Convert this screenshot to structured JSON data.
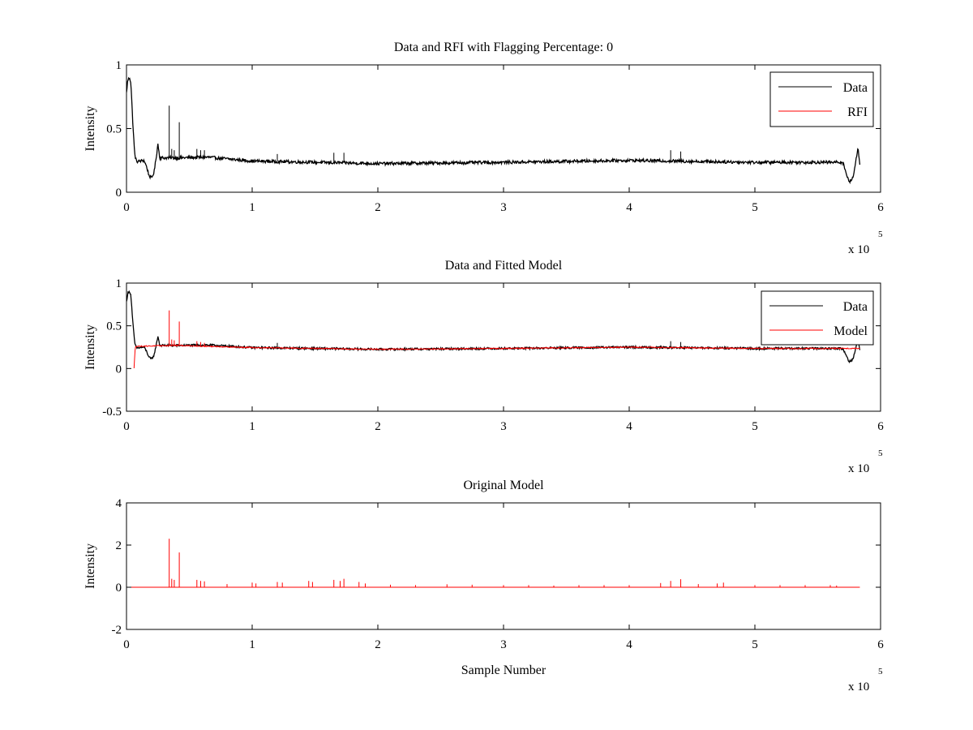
{
  "figure": {
    "background": "#ffffff"
  },
  "chart_data": [
    {
      "type": "line",
      "title": "Data and RFI with Flagging Percentage: 0",
      "xlabel": "",
      "ylabel": "Intensity",
      "xlim": [
        0,
        600000
      ],
      "ylim": [
        0,
        1
      ],
      "xticks": [
        0,
        100000,
        200000,
        300000,
        400000,
        500000,
        600000
      ],
      "xtick_labels": [
        "0",
        "1",
        "2",
        "3",
        "4",
        "5",
        "6"
      ],
      "yticks": [
        0,
        0.5,
        1
      ],
      "ytick_labels": [
        "0",
        "0.5",
        "1"
      ],
      "x_exponent": {
        "base": "x 10",
        "power": "5"
      },
      "grid": false,
      "legend_position": "top-right",
      "series": [
        {
          "name": "Data",
          "color": "#000000",
          "baseline": 0.245,
          "noise": 0.012,
          "points": [
            [
              0,
              0.78
            ],
            [
              1000,
              0.88
            ],
            [
              2500,
              0.9
            ],
            [
              3500,
              0.86
            ],
            [
              5000,
              0.55
            ],
            [
              6500,
              0.3
            ],
            [
              8000,
              0.24
            ],
            [
              14000,
              0.25
            ],
            [
              16000,
              0.2
            ],
            [
              18000,
              0.13
            ],
            [
              20000,
              0.11
            ],
            [
              22000,
              0.16
            ],
            [
              24000,
              0.3
            ],
            [
              25000,
              0.38
            ],
            [
              26500,
              0.27
            ],
            [
              40000,
              0.27
            ],
            [
              65000,
              0.275
            ],
            [
              100000,
              0.245
            ],
            [
              200000,
              0.225
            ],
            [
              300000,
              0.235
            ],
            [
              400000,
              0.25
            ],
            [
              500000,
              0.235
            ],
            [
              570000,
              0.235
            ],
            [
              572000,
              0.17
            ],
            [
              575000,
              0.08
            ],
            [
              578000,
              0.11
            ],
            [
              580000,
              0.22
            ],
            [
              582000,
              0.36
            ],
            [
              583500,
              0.21
            ]
          ],
          "spikes": [
            [
              34000,
              0.68
            ],
            [
              42000,
              0.55
            ],
            [
              36000,
              0.34
            ],
            [
              38000,
              0.33
            ],
            [
              56000,
              0.34
            ],
            [
              59000,
              0.33
            ],
            [
              62000,
              0.33
            ],
            [
              120000,
              0.3
            ],
            [
              165000,
              0.31
            ],
            [
              173000,
              0.31
            ],
            [
              433000,
              0.33
            ],
            [
              441000,
              0.32
            ]
          ]
        },
        {
          "name": "RFI",
          "color": "#ff0000",
          "points": []
        }
      ]
    },
    {
      "type": "line",
      "title": "Data and Fitted Model",
      "xlabel": "",
      "ylabel": "Intensity",
      "xlim": [
        0,
        600000
      ],
      "ylim": [
        -0.5,
        1
      ],
      "xticks": [
        0,
        100000,
        200000,
        300000,
        400000,
        500000,
        600000
      ],
      "xtick_labels": [
        "0",
        "1",
        "2",
        "3",
        "4",
        "5",
        "6"
      ],
      "yticks": [
        -0.5,
        0,
        0.5,
        1
      ],
      "ytick_labels": [
        "-0.5",
        "0",
        "0.5",
        "1"
      ],
      "x_exponent": {
        "base": "x 10",
        "power": "5"
      },
      "grid": false,
      "legend_position": "top-right",
      "series": [
        {
          "name": "Data",
          "color": "#000000",
          "baseline": 0.245,
          "noise": 0.012,
          "points": [
            [
              0,
              0.78
            ],
            [
              1000,
              0.88
            ],
            [
              2500,
              0.9
            ],
            [
              3500,
              0.86
            ],
            [
              5000,
              0.55
            ],
            [
              6500,
              0.3
            ],
            [
              8000,
              0.24
            ],
            [
              14000,
              0.25
            ],
            [
              16000,
              0.2
            ],
            [
              18000,
              0.13
            ],
            [
              20000,
              0.11
            ],
            [
              22000,
              0.16
            ],
            [
              24000,
              0.3
            ],
            [
              25000,
              0.38
            ],
            [
              26500,
              0.27
            ],
            [
              40000,
              0.27
            ],
            [
              65000,
              0.275
            ],
            [
              100000,
              0.245
            ],
            [
              200000,
              0.225
            ],
            [
              300000,
              0.235
            ],
            [
              400000,
              0.25
            ],
            [
              500000,
              0.235
            ],
            [
              570000,
              0.235
            ],
            [
              572000,
              0.17
            ],
            [
              575000,
              0.08
            ],
            [
              578000,
              0.11
            ],
            [
              580000,
              0.22
            ],
            [
              582000,
              0.36
            ],
            [
              583500,
              0.21
            ]
          ],
          "spikes": [
            [
              34000,
              0.3
            ],
            [
              120000,
              0.3
            ],
            [
              433000,
              0.32
            ],
            [
              441000,
              0.31
            ]
          ]
        },
        {
          "name": "Model",
          "color": "#ff0000",
          "baseline": 0.245,
          "noise": 0.006,
          "points": [
            [
              6000,
              0.0
            ],
            [
              7000,
              0.26
            ],
            [
              40000,
              0.27
            ],
            [
              100000,
              0.245
            ],
            [
              200000,
              0.225
            ],
            [
              300000,
              0.235
            ],
            [
              400000,
              0.25
            ],
            [
              500000,
              0.235
            ],
            [
              583500,
              0.235
            ]
          ],
          "spikes": [
            [
              34000,
              0.68
            ],
            [
              42000,
              0.55
            ],
            [
              36000,
              0.34
            ],
            [
              38000,
              0.33
            ],
            [
              56000,
              0.32
            ],
            [
              59000,
              0.31
            ],
            [
              62000,
              0.3
            ]
          ]
        }
      ]
    },
    {
      "type": "line",
      "title": "Original Model",
      "xlabel": "Sample Number",
      "ylabel": "Intensity",
      "xlim": [
        0,
        600000
      ],
      "ylim": [
        -2,
        4
      ],
      "xticks": [
        0,
        100000,
        200000,
        300000,
        400000,
        500000,
        600000
      ],
      "xtick_labels": [
        "0",
        "1",
        "2",
        "3",
        "4",
        "5",
        "6"
      ],
      "yticks": [
        -2,
        0,
        2,
        4
      ],
      "ytick_labels": [
        "-2",
        "0",
        "2",
        "4"
      ],
      "x_exponent": {
        "base": "x 10",
        "power": "5"
      },
      "grid": false,
      "legend_position": "none",
      "series": [
        {
          "name": "",
          "color": "#ff0000",
          "baseline": 0.0,
          "noise": 0.0,
          "points": [
            [
              0,
              0.0
            ],
            [
              583500,
              0.0
            ]
          ],
          "spikes": [
            [
              34000,
              2.3
            ],
            [
              42000,
              1.65
            ],
            [
              36000,
              0.4
            ],
            [
              38000,
              0.35
            ],
            [
              56000,
              0.35
            ],
            [
              59000,
              0.3
            ],
            [
              62000,
              0.28
            ],
            [
              80000,
              0.15
            ],
            [
              100000,
              0.22
            ],
            [
              103000,
              0.18
            ],
            [
              120000,
              0.25
            ],
            [
              124000,
              0.22
            ],
            [
              145000,
              0.3
            ],
            [
              148000,
              0.25
            ],
            [
              165000,
              0.35
            ],
            [
              170000,
              0.3
            ],
            [
              173000,
              0.4
            ],
            [
              185000,
              0.25
            ],
            [
              190000,
              0.18
            ],
            [
              210000,
              0.12
            ],
            [
              230000,
              0.1
            ],
            [
              255000,
              0.14
            ],
            [
              275000,
              0.12
            ],
            [
              300000,
              0.1
            ],
            [
              320000,
              0.1
            ],
            [
              340000,
              0.08
            ],
            [
              360000,
              0.1
            ],
            [
              380000,
              0.1
            ],
            [
              400000,
              0.1
            ],
            [
              425000,
              0.2
            ],
            [
              433000,
              0.3
            ],
            [
              441000,
              0.38
            ],
            [
              455000,
              0.15
            ],
            [
              470000,
              0.18
            ],
            [
              475000,
              0.22
            ],
            [
              500000,
              0.1
            ],
            [
              520000,
              0.1
            ],
            [
              540000,
              0.1
            ],
            [
              560000,
              0.1
            ],
            [
              565000,
              0.08
            ]
          ]
        }
      ]
    }
  ]
}
